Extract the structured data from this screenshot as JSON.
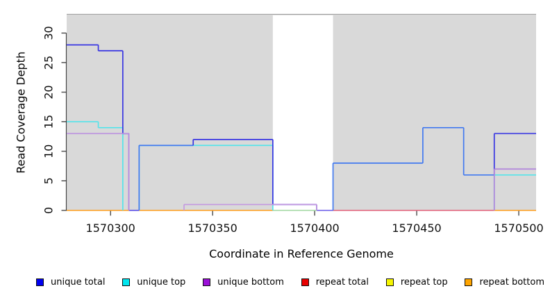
{
  "chart_data": {
    "type": "step-line",
    "title": "",
    "xlabel": "Coordinate in Reference Genome",
    "ylabel": "Read Coverage Depth",
    "x_ticks": [
      1570300,
      1570350,
      1570400,
      1570450,
      1570500
    ],
    "y_ticks": [
      0,
      5,
      10,
      15,
      20,
      25,
      30
    ],
    "x_range": [
      1570278.5,
      1570508.5
    ],
    "y_range": [
      0,
      33.3
    ],
    "grid": false,
    "plot_bg_color": "#D9D9D9",
    "plot_bg_top_edge_color": "#A0A0A0",
    "gap_region": {
      "x0": 1570379.5,
      "x1": 1570409
    },
    "axis_color": "#444444",
    "tick_color": "#2B2B2B",
    "tick_label_color": "#111111",
    "series": [
      {
        "name": "unique top",
        "runs": [
          [
            1570278.5,
            1570294,
            15,
            "#54E4EA"
          ],
          [
            1570294,
            1570306,
            14,
            "#54E4EA"
          ],
          [
            1570314,
            1570379.5,
            11,
            "#54E4EA"
          ],
          [
            1570488,
            1570508.5,
            6,
            "#54E4EA"
          ]
        ]
      },
      {
        "name": "unique total",
        "runs": [
          [
            1570278.5,
            1570294,
            28,
            "#3835E2"
          ],
          [
            1570294,
            1570306,
            27,
            "#3835E2"
          ],
          [
            1570306,
            1570309,
            13,
            "#3835E2"
          ],
          [
            1570314,
            1570340.5,
            11,
            "#4179F0"
          ],
          [
            1570340.5,
            1570379.5,
            12,
            "#3835E2"
          ],
          [
            1570379.5,
            1570401,
            1,
            "#3835E2"
          ],
          [
            1570409,
            1570453,
            8,
            "#4179F0"
          ],
          [
            1570453,
            1570473,
            14,
            "#4179F0"
          ],
          [
            1570473,
            1570488,
            6,
            "#4179F0"
          ],
          [
            1570488,
            1570508.5,
            13,
            "#3835E2"
          ]
        ]
      },
      {
        "name": "unique bottom",
        "runs": [
          [
            1570278.5,
            1570309,
            13,
            "#BB8EDF"
          ],
          [
            1570336,
            1570401,
            1,
            "#C49ADF"
          ],
          [
            1570488,
            1570508.5,
            7,
            "#B184DC"
          ]
        ]
      }
    ],
    "baseline_segments": [
      [
        1570278.5,
        1570309,
        "#FF9E1B"
      ],
      [
        1570309,
        1570314,
        "#5B50E8"
      ],
      [
        1570314,
        1570379.5,
        "#FF9E1B"
      ],
      [
        1570379.5,
        1570401,
        "#A0D7A0"
      ],
      [
        1570401,
        1570409,
        "#6A5AE8"
      ],
      [
        1570409,
        1570488,
        "#E26078"
      ],
      [
        1570488,
        1570508.5,
        "#FF9E1B"
      ]
    ],
    "legend": [
      {
        "label": "unique total",
        "color": "#0000F0"
      },
      {
        "label": "unique top",
        "color": "#00E5EE"
      },
      {
        "label": "unique bottom",
        "color": "#9B0FD8"
      },
      {
        "label": "repeat total",
        "color": "#E80000"
      },
      {
        "label": "repeat top",
        "color": "#F5F500"
      },
      {
        "label": "repeat bottom",
        "color": "#FFA500"
      }
    ]
  }
}
